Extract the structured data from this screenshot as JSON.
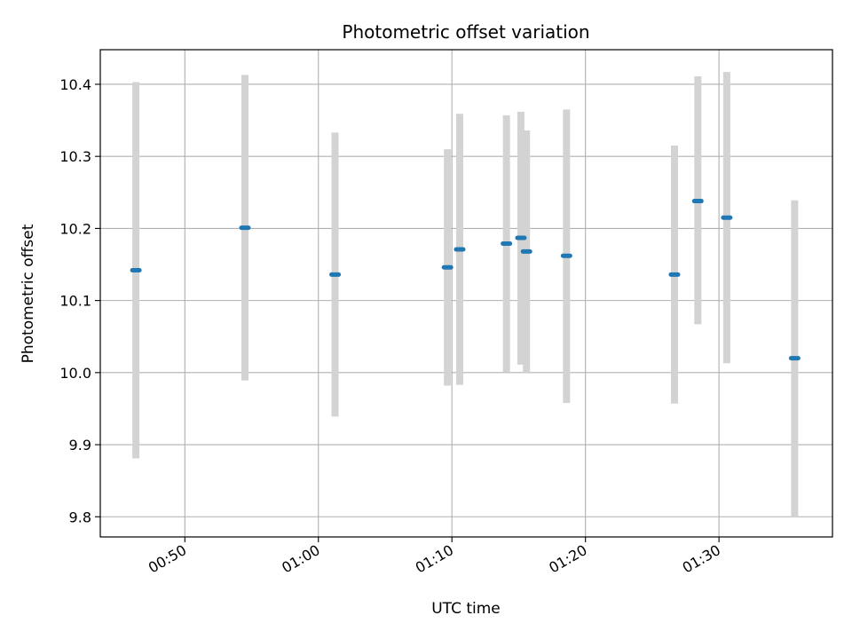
{
  "chart_data": {
    "type": "scatter",
    "title": "Photometric offset variation",
    "xlabel": "UTC time",
    "ylabel": "Photometric offset",
    "x_unit": "UTC time HH:MM",
    "xlim": [
      "00:43:40",
      "01:38:30"
    ],
    "ylim": [
      9.772,
      10.448
    ],
    "x_ticks": [
      "00:50",
      "01:00",
      "01:10",
      "01:20",
      "01:30"
    ],
    "y_ticks": [
      9.8,
      9.9,
      10.0,
      10.1,
      10.2,
      10.3,
      10.4
    ],
    "y_tick_labels": [
      "9.8",
      "9.9",
      "10.0",
      "10.1",
      "10.2",
      "10.3",
      "10.4"
    ],
    "grid": true,
    "colors": {
      "marker": "#1f77b4",
      "errorbar": "#d3d3d3",
      "grid": "#b0b0b0"
    },
    "points": [
      {
        "time": "00:46:20",
        "y": 10.142,
        "err_low": 9.881,
        "err_high": 10.403
      },
      {
        "time": "00:54:30",
        "y": 10.201,
        "err_low": 9.989,
        "err_high": 10.413
      },
      {
        "time": "01:01:15",
        "y": 10.136,
        "err_low": 9.939,
        "err_high": 10.333
      },
      {
        "time": "01:09:40",
        "y": 10.146,
        "err_low": 9.982,
        "err_high": 10.31
      },
      {
        "time": "01:10:35",
        "y": 10.171,
        "err_low": 9.983,
        "err_high": 10.359
      },
      {
        "time": "01:14:05",
        "y": 10.179,
        "err_low": 10.001,
        "err_high": 10.357
      },
      {
        "time": "01:15:10",
        "y": 10.187,
        "err_low": 10.011,
        "err_high": 10.362
      },
      {
        "time": "01:15:35",
        "y": 10.168,
        "err_low": 10.0,
        "err_high": 10.336
      },
      {
        "time": "01:18:35",
        "y": 10.162,
        "err_low": 9.958,
        "err_high": 10.365
      },
      {
        "time": "01:26:40",
        "y": 10.136,
        "err_low": 9.957,
        "err_high": 10.315
      },
      {
        "time": "01:28:25",
        "y": 10.238,
        "err_low": 10.067,
        "err_high": 10.411
      },
      {
        "time": "01:30:35",
        "y": 10.215,
        "err_low": 10.013,
        "err_high": 10.417
      },
      {
        "time": "01:35:40",
        "y": 10.02,
        "err_low": 9.8,
        "err_high": 10.239
      }
    ]
  }
}
